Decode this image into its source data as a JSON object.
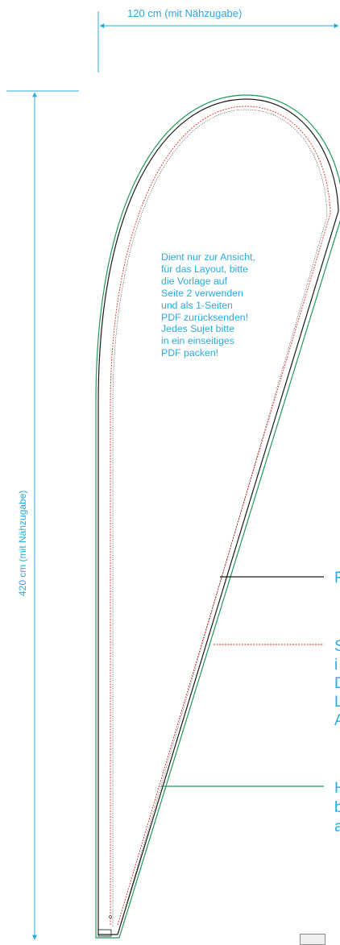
{
  "dimensions": {
    "width_label": "120 cm (mit Nähzugabe)",
    "height_label": "420 cm (mit Nähzugabe)"
  },
  "note_lines": [
    "Dient nur zur Ansicht,",
    "für das Layout, bitte",
    "die Vorlage auf",
    "Seite 2 verwenden",
    "und als 1-Seiten",
    "PDF zurücksenden!",
    "Jedes Sujet bitte",
    "in ein einseitiges",
    "PDF packen!"
  ],
  "legend": {
    "solid_black": [
      "F"
    ],
    "dashed_red": [
      "S",
      "i",
      "D",
      "L",
      "A"
    ],
    "solid_green": [
      "H",
      "b",
      "a"
    ]
  },
  "colors": {
    "dimension": "#29abe2",
    "cut_line": "#1a1a1a",
    "safe_line": "#e0301e",
    "seam_line": "#1e9a56"
  }
}
